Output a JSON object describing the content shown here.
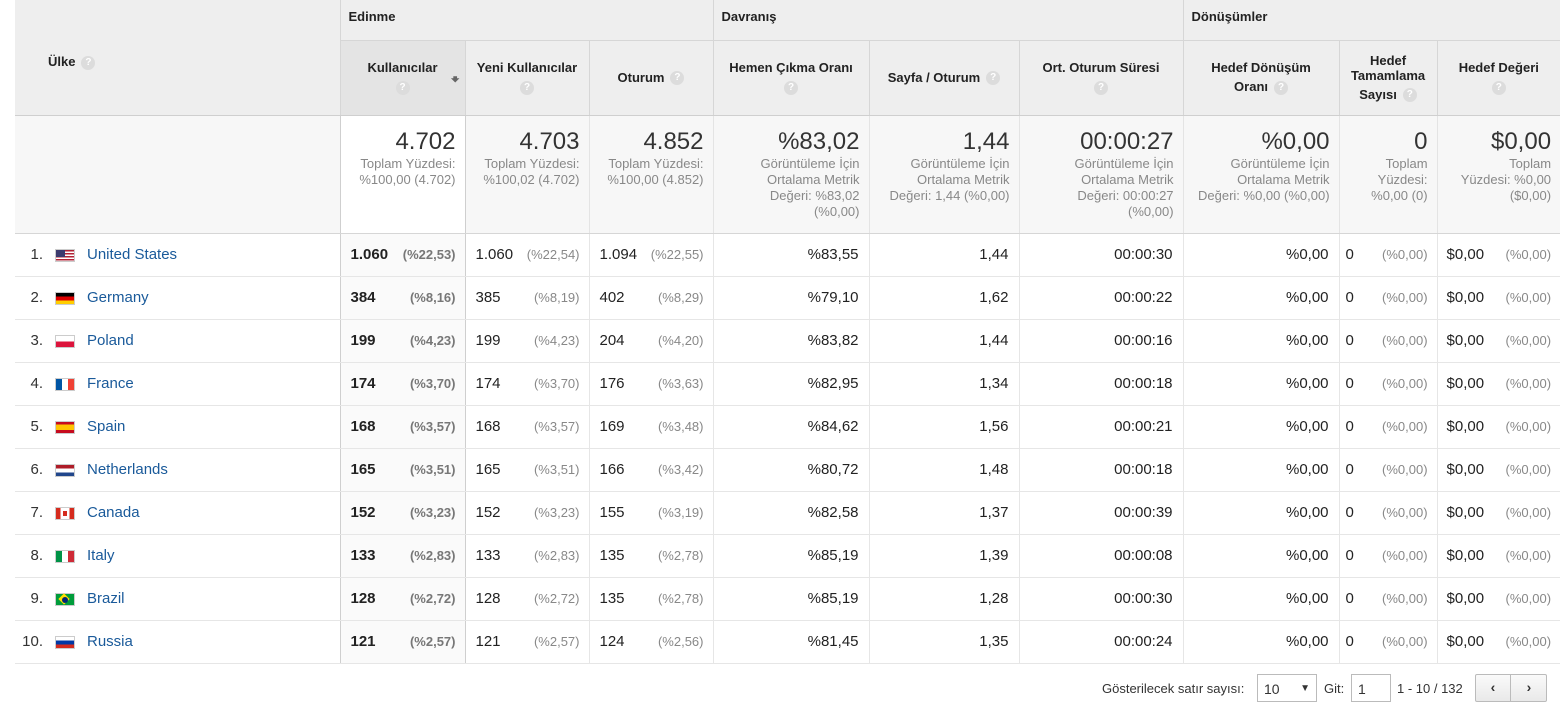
{
  "groups": {
    "acquisition": "Edinme",
    "behavior": "Davranış",
    "conversions": "Dönüşümler"
  },
  "columns": {
    "country": "Ülke",
    "users": "Kullanıcılar",
    "new_users": "Yeni Kullanıcılar",
    "sessions": "Oturum",
    "bounce_rate": "Hemen Çıkma Oranı",
    "pages_per_session": "Sayfa / Oturum",
    "avg_session_duration": "Ort. Oturum Süresi",
    "goal_conv_rate_l1": "Hedef Dönüşüm",
    "goal_conv_rate_l2": "Oranı",
    "goal_completions_l1": "Hedef",
    "goal_completions_l2": "Tamamlama",
    "goal_completions_l3": "Sayısı",
    "goal_value": "Hedef Değeri",
    "help_glyph": "?"
  },
  "icons": {
    "sort": "arrow-down-icon",
    "help": "help-circle-icon"
  },
  "totals": {
    "users": {
      "value": "4.702",
      "s1": "Toplam Yüzdesi:",
      "s2": "%100,00 (4.702)"
    },
    "new_users": {
      "value": "4.703",
      "s1": "Toplam Yüzdesi:",
      "s2": "%100,02 (4.702)"
    },
    "sessions": {
      "value": "4.852",
      "s1": "Toplam Yüzdesi:",
      "s2": "%100,00 (4.852)"
    },
    "bounce_rate": {
      "value": "%83,02",
      "s1": "Görüntüleme İçin",
      "s2": "Ortalama Metrik",
      "s3": "Değeri: %83,02",
      "s4": "(%0,00)"
    },
    "pages_per_session": {
      "value": "1,44",
      "s1": "Görüntüleme İçin",
      "s2": "Ortalama Metrik",
      "s3": "Değeri: 1,44 (%0,00)"
    },
    "avg_session_duration": {
      "value": "00:00:27",
      "s1": "Görüntüleme İçin",
      "s2": "Ortalama Metrik",
      "s3": "Değeri: 00:00:27",
      "s4": "(%0,00)"
    },
    "goal_conv_rate": {
      "value": "%0,00",
      "s1": "Görüntüleme İçin",
      "s2": "Ortalama Metrik",
      "s3": "Değeri: %0,00 (%0,00)"
    },
    "goal_completions": {
      "value": "0",
      "s1": "Toplam",
      "s2": "Yüzdesi:",
      "s3": "%0,00 (0)"
    },
    "goal_value": {
      "value": "$0,00",
      "s1": "Toplam",
      "s2": "Yüzdesi: %0,00",
      "s3": "($0,00)"
    }
  },
  "rows": [
    {
      "idx": "1.",
      "flag": "us",
      "country": "United States",
      "users": "1.060",
      "users_pct": "(%22,53)",
      "new_users": "1.060",
      "new_users_pct": "(%22,54)",
      "sessions": "1.094",
      "sessions_pct": "(%22,55)",
      "bounce": "%83,55",
      "pps": "1,44",
      "dur": "00:00:30",
      "conv": "%0,00",
      "comp": "0",
      "comp_pct": "(%0,00)",
      "val": "$0,00",
      "val_pct": "(%0,00)"
    },
    {
      "idx": "2.",
      "flag": "de",
      "country": "Germany",
      "users": "384",
      "users_pct": "(%8,16)",
      "new_users": "385",
      "new_users_pct": "(%8,19)",
      "sessions": "402",
      "sessions_pct": "(%8,29)",
      "bounce": "%79,10",
      "pps": "1,62",
      "dur": "00:00:22",
      "conv": "%0,00",
      "comp": "0",
      "comp_pct": "(%0,00)",
      "val": "$0,00",
      "val_pct": "(%0,00)"
    },
    {
      "idx": "3.",
      "flag": "pl",
      "country": "Poland",
      "users": "199",
      "users_pct": "(%4,23)",
      "new_users": "199",
      "new_users_pct": "(%4,23)",
      "sessions": "204",
      "sessions_pct": "(%4,20)",
      "bounce": "%83,82",
      "pps": "1,44",
      "dur": "00:00:16",
      "conv": "%0,00",
      "comp": "0",
      "comp_pct": "(%0,00)",
      "val": "$0,00",
      "val_pct": "(%0,00)"
    },
    {
      "idx": "4.",
      "flag": "fr",
      "country": "France",
      "users": "174",
      "users_pct": "(%3,70)",
      "new_users": "174",
      "new_users_pct": "(%3,70)",
      "sessions": "176",
      "sessions_pct": "(%3,63)",
      "bounce": "%82,95",
      "pps": "1,34",
      "dur": "00:00:18",
      "conv": "%0,00",
      "comp": "0",
      "comp_pct": "(%0,00)",
      "val": "$0,00",
      "val_pct": "(%0,00)"
    },
    {
      "idx": "5.",
      "flag": "es",
      "country": "Spain",
      "users": "168",
      "users_pct": "(%3,57)",
      "new_users": "168",
      "new_users_pct": "(%3,57)",
      "sessions": "169",
      "sessions_pct": "(%3,48)",
      "bounce": "%84,62",
      "pps": "1,56",
      "dur": "00:00:21",
      "conv": "%0,00",
      "comp": "0",
      "comp_pct": "(%0,00)",
      "val": "$0,00",
      "val_pct": "(%0,00)"
    },
    {
      "idx": "6.",
      "flag": "nl",
      "country": "Netherlands",
      "users": "165",
      "users_pct": "(%3,51)",
      "new_users": "165",
      "new_users_pct": "(%3,51)",
      "sessions": "166",
      "sessions_pct": "(%3,42)",
      "bounce": "%80,72",
      "pps": "1,48",
      "dur": "00:00:18",
      "conv": "%0,00",
      "comp": "0",
      "comp_pct": "(%0,00)",
      "val": "$0,00",
      "val_pct": "(%0,00)"
    },
    {
      "idx": "7.",
      "flag": "ca",
      "country": "Canada",
      "users": "152",
      "users_pct": "(%3,23)",
      "new_users": "152",
      "new_users_pct": "(%3,23)",
      "sessions": "155",
      "sessions_pct": "(%3,19)",
      "bounce": "%82,58",
      "pps": "1,37",
      "dur": "00:00:39",
      "conv": "%0,00",
      "comp": "0",
      "comp_pct": "(%0,00)",
      "val": "$0,00",
      "val_pct": "(%0,00)"
    },
    {
      "idx": "8.",
      "flag": "it",
      "country": "Italy",
      "users": "133",
      "users_pct": "(%2,83)",
      "new_users": "133",
      "new_users_pct": "(%2,83)",
      "sessions": "135",
      "sessions_pct": "(%2,78)",
      "bounce": "%85,19",
      "pps": "1,39",
      "dur": "00:00:08",
      "conv": "%0,00",
      "comp": "0",
      "comp_pct": "(%0,00)",
      "val": "$0,00",
      "val_pct": "(%0,00)"
    },
    {
      "idx": "9.",
      "flag": "br",
      "country": "Brazil",
      "users": "128",
      "users_pct": "(%2,72)",
      "new_users": "128",
      "new_users_pct": "(%2,72)",
      "sessions": "135",
      "sessions_pct": "(%2,78)",
      "bounce": "%85,19",
      "pps": "1,28",
      "dur": "00:00:30",
      "conv": "%0,00",
      "comp": "0",
      "comp_pct": "(%0,00)",
      "val": "$0,00",
      "val_pct": "(%0,00)"
    },
    {
      "idx": "10.",
      "flag": "ru",
      "country": "Russia",
      "users": "121",
      "users_pct": "(%2,57)",
      "new_users": "121",
      "new_users_pct": "(%2,57)",
      "sessions": "124",
      "sessions_pct": "(%2,56)",
      "bounce": "%81,45",
      "pps": "1,35",
      "dur": "00:00:24",
      "conv": "%0,00",
      "comp": "0",
      "comp_pct": "(%0,00)",
      "val": "$0,00",
      "val_pct": "(%0,00)"
    }
  ],
  "pagination": {
    "rows_label": "Gösterilecek satır sayısı:",
    "rows_value": "10",
    "goto_label": "Git:",
    "goto_value": "1",
    "range": "1 - 10 / 132",
    "prev": "‹",
    "next": "›"
  }
}
